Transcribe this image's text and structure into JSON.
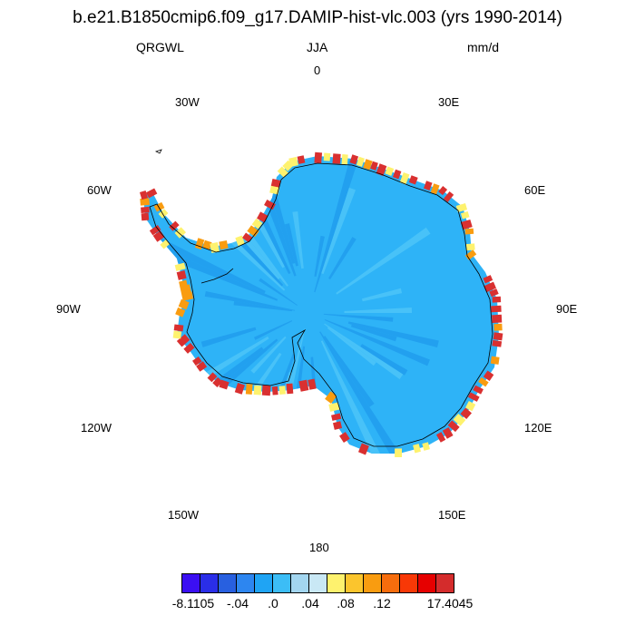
{
  "title": "b.e21.B1850cmip6.f09_g17.DAMIP-hist-vlc.003 (yrs 1990-2014)",
  "left_label": "QRGWL",
  "center_label": "JJA",
  "right_label": "mm/d",
  "longitude_labels": {
    "n": "0",
    "e30": "30E",
    "w30": "30W",
    "e60": "60E",
    "w60": "60W",
    "e90": "90E",
    "w90": "90W",
    "e120": "120E",
    "w120": "120W",
    "e150": "150E",
    "w150": "150W",
    "s": "180"
  },
  "colorbar": {
    "colors": [
      "#3b0ff2",
      "#2a2ee8",
      "#2860e0",
      "#2d86f0",
      "#1fa4f4",
      "#3cbdf6",
      "#a3d6f0",
      "#c9e8f5",
      "#fef26e",
      "#fbc52d",
      "#f99c10",
      "#f66d0d",
      "#f83806",
      "#e60000",
      "#d42c2c"
    ],
    "labels": [
      "-8.1105",
      "-.04",
      ".0",
      ".04",
      ".08",
      ".12",
      "17.4045"
    ]
  },
  "map_colors": {
    "interior": "#2eb3f7",
    "interior_dark": "#22a0ef",
    "coast_warm": "#d93030",
    "coast_orange": "#f99c10",
    "coast_yellow": "#fef26e"
  }
}
